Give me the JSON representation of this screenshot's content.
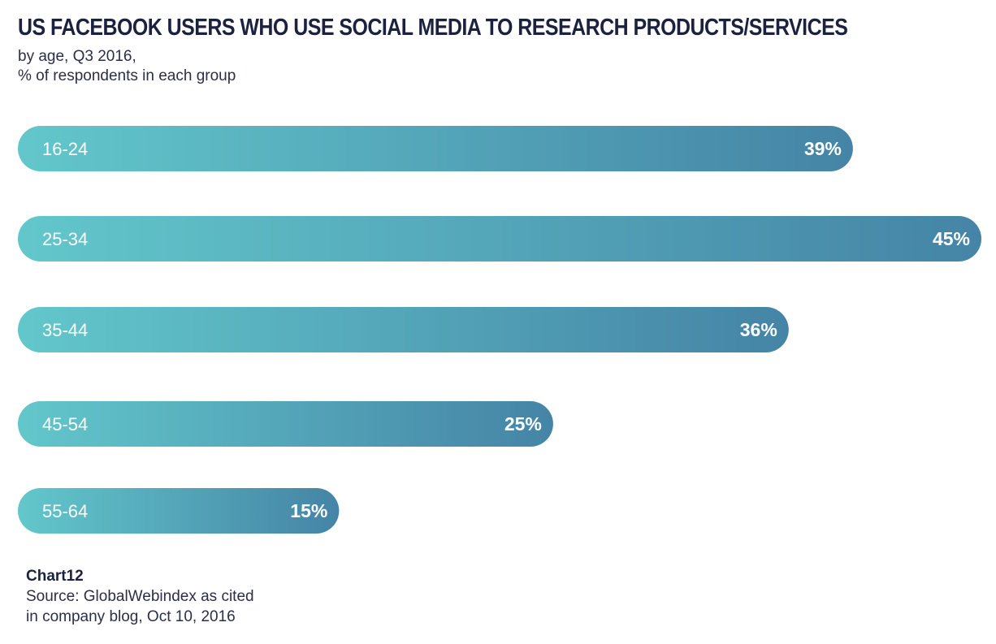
{
  "header": {
    "title": "US FACEBOOK USERS WHO USE SOCIAL MEDIA TO RESEARCH PRODUCTS/SERVICES",
    "subtitle_line1": "by age, Q3 2016,",
    "subtitle_line2": "% of respondents in each group"
  },
  "footer": {
    "label": "Chart12",
    "source_line1": "Source: GlobalWebindex as cited",
    "source_line2": "in company blog, Oct 10, 2016"
  },
  "colors": {
    "bar_start": "#62c7cb",
    "bar_end": "#4584a6",
    "text_light": "#ffffff"
  },
  "chart_data": {
    "type": "bar",
    "orientation": "horizontal",
    "categories": [
      "16-24",
      "25-34",
      "35-44",
      "45-54",
      "55-64"
    ],
    "values": [
      39,
      45,
      36,
      25,
      15
    ],
    "value_labels": [
      "39%",
      "45%",
      "36%",
      "25%",
      "15%"
    ],
    "grid": false,
    "legend": "none"
  }
}
